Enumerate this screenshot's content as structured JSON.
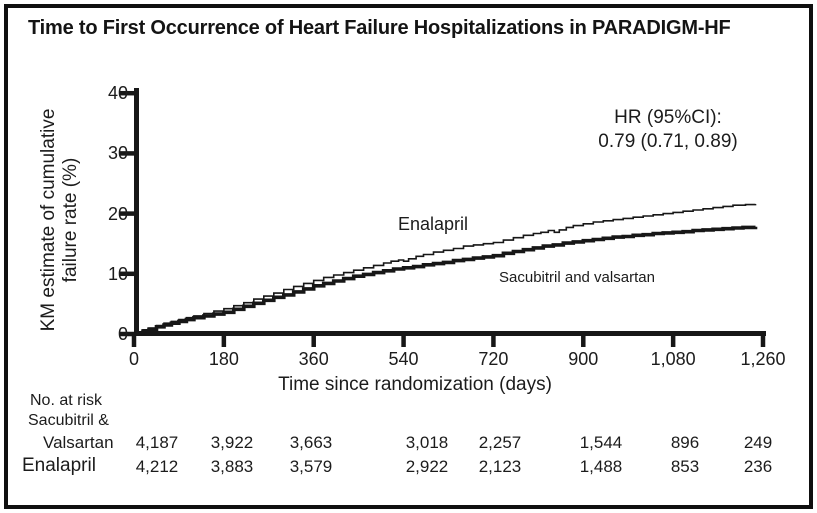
{
  "title": "Time to First Occurrence of Heart Failure Hospitalizations in PARADIGM-HF",
  "colors": {
    "ink": "#171717",
    "background": "#ffffff"
  },
  "chart_data": {
    "type": "line",
    "subtype": "kaplan-meier-step",
    "title": "Time to First Occurrence of Heart Failure Hospitalizations in PARADIGM-HF",
    "xlabel": "Time since randomization (days)",
    "ylabel": "KM estimate of cumulative failure rate (%)",
    "ylabel_lines": [
      "KM estimate of cumulative",
      "failure rate (%)"
    ],
    "xlim": [
      0,
      1260
    ],
    "ylim": [
      0,
      40
    ],
    "grid": "off",
    "xticks": [
      "0",
      "180",
      "360",
      "540",
      "720",
      "900",
      "1,080",
      "1,260"
    ],
    "xtick_values": [
      0,
      180,
      360,
      540,
      720,
      900,
      1080,
      1260
    ],
    "yticks": [
      "0",
      "10",
      "20",
      "30",
      "40"
    ],
    "ytick_values": [
      0,
      10,
      20,
      30,
      40
    ],
    "annotation": {
      "lines": [
        "HR (95%CI):",
        "0.79 (0.71, 0.89)"
      ]
    },
    "series": [
      {
        "name": "Enalapril",
        "line_weight": "thin",
        "points": [
          [
            0,
            0
          ],
          [
            8,
            0.3
          ],
          [
            18,
            0.7
          ],
          [
            30,
            1.0
          ],
          [
            45,
            1.4
          ],
          [
            60,
            1.8
          ],
          [
            75,
            2.1
          ],
          [
            90,
            2.4
          ],
          [
            105,
            2.7
          ],
          [
            120,
            3.0
          ],
          [
            140,
            3.4
          ],
          [
            160,
            3.8
          ],
          [
            180,
            4.2
          ],
          [
            200,
            4.7
          ],
          [
            220,
            5.2
          ],
          [
            240,
            5.8
          ],
          [
            260,
            6.3
          ],
          [
            280,
            6.8
          ],
          [
            300,
            7.4
          ],
          [
            320,
            7.9
          ],
          [
            340,
            8.4
          ],
          [
            360,
            8.9
          ],
          [
            380,
            9.4
          ],
          [
            400,
            9.8
          ],
          [
            420,
            10.2
          ],
          [
            440,
            10.6
          ],
          [
            460,
            11.0
          ],
          [
            480,
            11.4
          ],
          [
            500,
            11.8
          ],
          [
            515,
            12.1
          ],
          [
            530,
            12.3
          ],
          [
            540,
            12.1
          ],
          [
            550,
            12.5
          ],
          [
            565,
            12.9
          ],
          [
            580,
            13.2
          ],
          [
            600,
            13.6
          ],
          [
            620,
            13.9
          ],
          [
            640,
            14.2
          ],
          [
            660,
            14.6
          ],
          [
            680,
            14.8
          ],
          [
            700,
            15.0
          ],
          [
            720,
            15.2
          ],
          [
            740,
            15.6
          ],
          [
            760,
            16.0
          ],
          [
            780,
            16.4
          ],
          [
            800,
            16.7
          ],
          [
            815,
            16.9
          ],
          [
            830,
            17.2
          ],
          [
            842,
            16.9
          ],
          [
            852,
            17.3
          ],
          [
            866,
            17.7
          ],
          [
            880,
            18.0
          ],
          [
            900,
            18.3
          ],
          [
            920,
            18.6
          ],
          [
            940,
            18.8
          ],
          [
            960,
            19.0
          ],
          [
            980,
            19.2
          ],
          [
            1000,
            19.4
          ],
          [
            1020,
            19.6
          ],
          [
            1040,
            19.8
          ],
          [
            1060,
            20.0
          ],
          [
            1080,
            20.2
          ],
          [
            1100,
            20.4
          ],
          [
            1120,
            20.6
          ],
          [
            1140,
            20.8
          ],
          [
            1160,
            21.0
          ],
          [
            1180,
            21.2
          ],
          [
            1200,
            21.4
          ],
          [
            1225,
            21.5
          ],
          [
            1245,
            21.6
          ]
        ]
      },
      {
        "name": "Sacubitril and valsartan",
        "line_weight": "thick",
        "points": [
          [
            0,
            0
          ],
          [
            8,
            0.2
          ],
          [
            18,
            0.5
          ],
          [
            30,
            0.8
          ],
          [
            45,
            1.2
          ],
          [
            60,
            1.5
          ],
          [
            75,
            1.8
          ],
          [
            90,
            2.1
          ],
          [
            105,
            2.4
          ],
          [
            120,
            2.7
          ],
          [
            140,
            3.0
          ],
          [
            160,
            3.3
          ],
          [
            180,
            3.6
          ],
          [
            200,
            4.1
          ],
          [
            220,
            4.6
          ],
          [
            240,
            5.1
          ],
          [
            260,
            5.6
          ],
          [
            280,
            6.1
          ],
          [
            300,
            6.5
          ],
          [
            320,
            7.0
          ],
          [
            340,
            7.5
          ],
          [
            360,
            8.0
          ],
          [
            380,
            8.4
          ],
          [
            400,
            8.8
          ],
          [
            420,
            9.2
          ],
          [
            440,
            9.6
          ],
          [
            460,
            9.9
          ],
          [
            480,
            10.2
          ],
          [
            500,
            10.5
          ],
          [
            520,
            10.8
          ],
          [
            540,
            11.0
          ],
          [
            560,
            11.2
          ],
          [
            580,
            11.5
          ],
          [
            600,
            11.7
          ],
          [
            620,
            11.9
          ],
          [
            640,
            12.2
          ],
          [
            660,
            12.4
          ],
          [
            680,
            12.6
          ],
          [
            700,
            12.8
          ],
          [
            720,
            13.0
          ],
          [
            740,
            13.4
          ],
          [
            760,
            13.7
          ],
          [
            780,
            14.0
          ],
          [
            800,
            14.3
          ],
          [
            820,
            14.6
          ],
          [
            840,
            14.8
          ],
          [
            860,
            15.1
          ],
          [
            880,
            15.3
          ],
          [
            900,
            15.5
          ],
          [
            920,
            15.7
          ],
          [
            940,
            15.9
          ],
          [
            960,
            16.1
          ],
          [
            980,
            16.2
          ],
          [
            1000,
            16.4
          ],
          [
            1020,
            16.5
          ],
          [
            1040,
            16.7
          ],
          [
            1060,
            16.8
          ],
          [
            1080,
            16.9
          ],
          [
            1100,
            17.0
          ],
          [
            1120,
            17.2
          ],
          [
            1140,
            17.3
          ],
          [
            1160,
            17.4
          ],
          [
            1180,
            17.5
          ],
          [
            1200,
            17.6
          ],
          [
            1220,
            17.7
          ],
          [
            1245,
            17.8
          ]
        ]
      }
    ]
  },
  "risk_table": {
    "header": "No. at risk",
    "rows": [
      {
        "label_lines": [
          "Sacubitril &",
          "Valsartan"
        ],
        "values": [
          "4,187",
          "3,922",
          "3,663",
          "3,018",
          "2,257",
          "1,544",
          "896",
          "249"
        ]
      },
      {
        "label_lines": [
          "Enalapril"
        ],
        "values": [
          "4,212",
          "3,883",
          "3,579",
          "2,922",
          "2,123",
          "1,488",
          "853",
          "236"
        ]
      }
    ]
  }
}
